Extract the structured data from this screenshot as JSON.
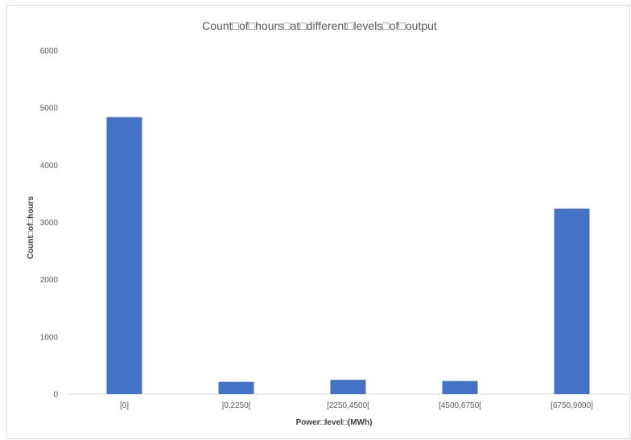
{
  "chart_data": {
    "type": "bar",
    "title": "Count□of□hours□at□different□levels□of□output",
    "xlabel": "Power□level□(MWh)",
    "ylabel": "Count□of□hours",
    "categories": [
      "[0]",
      "]0,2250[",
      "[2250,4500[",
      "[4500,6750[",
      "[6750,9000]"
    ],
    "values": [
      4840,
      215,
      250,
      230,
      3240
    ],
    "ylim": [
      0,
      6000
    ],
    "yticks": [
      0,
      1000,
      2000,
      3000,
      4000,
      5000,
      6000
    ],
    "bar_color": "#4472c4",
    "grid": false,
    "legend": "none"
  }
}
